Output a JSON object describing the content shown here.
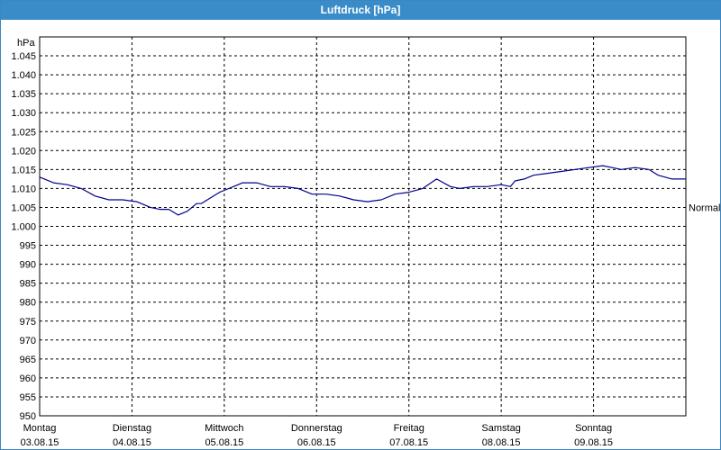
{
  "window": {
    "title": "Luftdruck [hPa]"
  },
  "chart_data": {
    "type": "line",
    "title": "Luftdruck [hPa]",
    "ylabel": "hPa",
    "ylim": [
      950,
      1050
    ],
    "yticks": [
      950,
      955,
      960,
      965,
      970,
      975,
      980,
      985,
      990,
      995,
      1000,
      1005,
      1010,
      1015,
      1020,
      1025,
      1030,
      1035,
      1040,
      1045
    ],
    "ytick_labels": [
      "950",
      "955",
      "960",
      "965",
      "970",
      "975",
      "980",
      "985",
      "990",
      "995",
      "1.000",
      "1.005",
      "1.010",
      "1.015",
      "1.020",
      "1.025",
      "1.030",
      "1.035",
      "1.040",
      "1.045"
    ],
    "xlim": [
      0,
      7
    ],
    "xticks": [
      {
        "x": 0,
        "day": "Montag",
        "date": "03.08.15"
      },
      {
        "x": 1,
        "day": "Dienstag",
        "date": "04.08.15"
      },
      {
        "x": 2,
        "day": "Mittwoch",
        "date": "05.08.15"
      },
      {
        "x": 3,
        "day": "Donnerstag",
        "date": "06.08.15"
      },
      {
        "x": 4,
        "day": "Freitag",
        "date": "07.08.15"
      },
      {
        "x": 5,
        "day": "Samstag",
        "date": "08.08.15"
      },
      {
        "x": 6,
        "day": "Sonntag",
        "date": "09.08.15"
      }
    ],
    "grid": true,
    "reference_line": {
      "label": "Normal",
      "value": 1005
    },
    "series": [
      {
        "color": "#00008b",
        "x": [
          0,
          0.15,
          0.3,
          0.45,
          0.6,
          0.75,
          0.9,
          1.05,
          1.2,
          1.3,
          1.4,
          1.5,
          1.6,
          1.7,
          1.75,
          1.85,
          1.95,
          2.0,
          2.1,
          2.2,
          2.35,
          2.5,
          2.65,
          2.8,
          2.95,
          3.1,
          3.25,
          3.4,
          3.55,
          3.7,
          3.85,
          4.0,
          4.15,
          4.3,
          4.45,
          4.55,
          4.7,
          4.85,
          5.0,
          5.1,
          5.15,
          5.25,
          5.35,
          5.5,
          5.65,
          5.8,
          5.95,
          6.1,
          6.2,
          6.3,
          6.45,
          6.6,
          6.7,
          6.85,
          7.0
        ],
        "y": [
          1013,
          1011.5,
          1011,
          1010,
          1008,
          1007,
          1007,
          1006.5,
          1005,
          1004.5,
          1004.5,
          1003,
          1004,
          1006,
          1006,
          1007.5,
          1009,
          1009.5,
          1010.5,
          1011.5,
          1011.5,
          1010.5,
          1010.5,
          1010,
          1008.5,
          1008.5,
          1008,
          1007,
          1006.5,
          1007,
          1008.5,
          1009,
          1010,
          1012.5,
          1010.5,
          1010,
          1010.5,
          1010.5,
          1011,
          1010.5,
          1012,
          1012.5,
          1013.5,
          1014,
          1014.5,
          1015,
          1015.5,
          1016,
          1015.5,
          1015,
          1015.5,
          1015,
          1013.5,
          1012.5,
          1012.5
        ]
      }
    ]
  }
}
